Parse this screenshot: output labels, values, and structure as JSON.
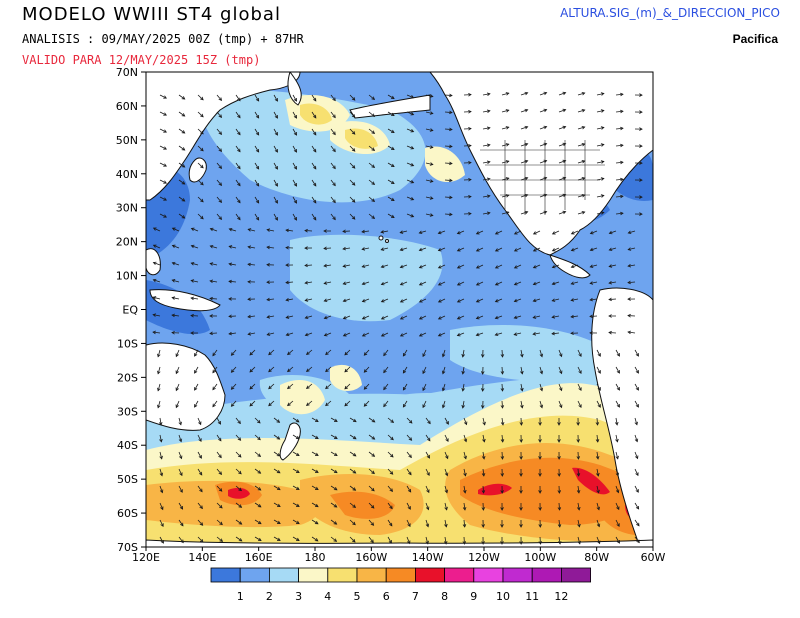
{
  "header": {
    "title": "MODELO WWIII ST4 global",
    "analysis": "ANALISIS : 09/MAY/2025 00Z  (tmp) + 87HR",
    "valid": "VALIDO PARA  12/MAY/2025 15Z  (tmp)",
    "product": "ALTURA.SIG_(m)_&_DIRECCION_PICO",
    "region": "Pacifica"
  },
  "map": {
    "lat_labels": [
      "70N",
      "60N",
      "50N",
      "40N",
      "30N",
      "20N",
      "10N",
      "EQ",
      "10S",
      "20S",
      "30S",
      "40S",
      "50S",
      "60S",
      "70S"
    ],
    "lon_labels": [
      "120E",
      "140E",
      "160E",
      "180",
      "160W",
      "140W",
      "120W",
      "100W",
      "80W",
      "60W"
    ],
    "colors": {
      "land": "#ffffff",
      "coast": "#111111",
      "arrows": "#1a1a1a"
    }
  },
  "colorbar": {
    "labels": [
      "1",
      "2",
      "3",
      "4",
      "5",
      "6",
      "7",
      "8",
      "9",
      "10",
      "11",
      "12"
    ],
    "colors": [
      "#3c78dc",
      "#6ea4ef",
      "#a6daf5",
      "#fbf7c8",
      "#f7e070",
      "#f8b546",
      "#f68a24",
      "#e8112a",
      "#ec1e8e",
      "#e842e0",
      "#c02ad0",
      "#ae19b4",
      "#8f1a98"
    ]
  }
}
